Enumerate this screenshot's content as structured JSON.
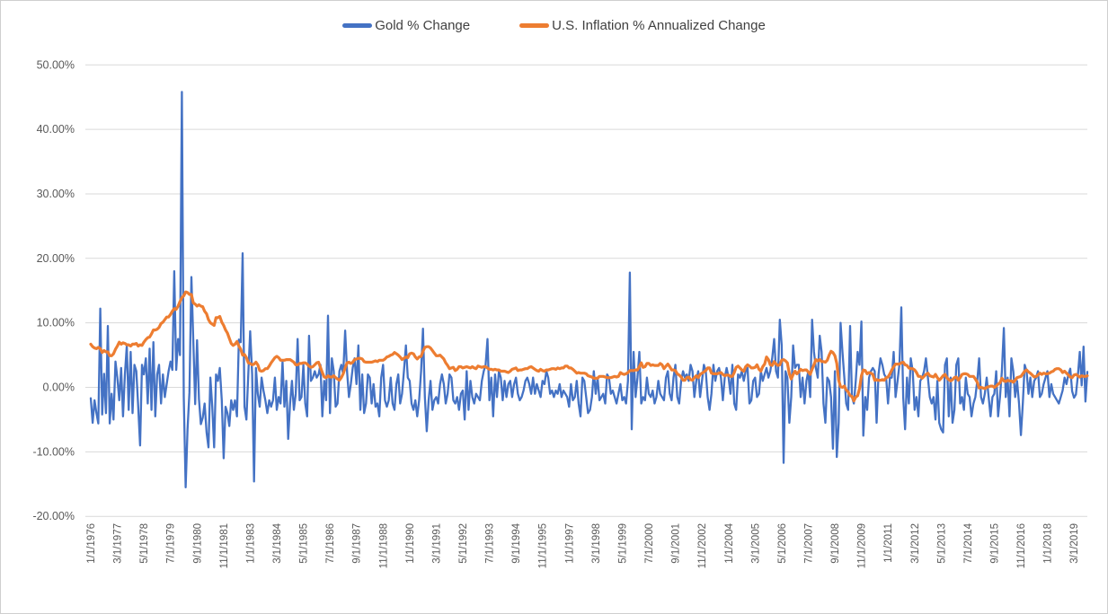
{
  "legend": {
    "items": [
      {
        "label": "Gold % Change",
        "color": "#4472C4"
      },
      {
        "label": "U.S. Inflation % Annualized Change",
        "color": "#ED7D31"
      }
    ]
  },
  "chart_data": {
    "type": "line",
    "title": "",
    "xlabel": "",
    "ylabel": "",
    "grid": "horizontal",
    "legend_position": "top-center",
    "x_unit": "monthly",
    "x_tick_every_n_points": 14,
    "x_tick_labels": [
      "1/1/1976",
      "3/1/1977",
      "5/1/1978",
      "7/1/1979",
      "9/1/1980",
      "11/1/1981",
      "1/1/1983",
      "3/1/1984",
      "5/1/1985",
      "7/1/1986",
      "9/1/1987",
      "11/1/1988",
      "1/1/1990",
      "3/1/1991",
      "5/1/1992",
      "7/1/1993",
      "9/1/1994",
      "11/1/1995",
      "1/1/1997",
      "3/1/1998",
      "5/1/1999",
      "7/1/2000",
      "9/1/2001",
      "11/1/2002",
      "1/1/2004",
      "3/1/2005",
      "5/1/2006",
      "7/1/2007",
      "9/1/2008",
      "11/1/2009",
      "1/1/2011",
      "3/1/2012",
      "5/1/2013",
      "7/1/2014",
      "9/1/2015",
      "11/1/2016",
      "1/1/2018",
      "3/1/2019"
    ],
    "y_axis": {
      "min": -20,
      "max": 50,
      "step": 10
    },
    "y_tick_labels": [
      "50.00%",
      "40.00%",
      "30.00%",
      "20.00%",
      "10.00%",
      "0.00%",
      "-10.00%",
      "-20.00%"
    ],
    "y_tick_values": [
      50,
      40,
      30,
      20,
      10,
      0,
      -10,
      -20
    ],
    "series": [
      {
        "name": "Gold % Change",
        "color": "#4472C4",
        "stroke_width": 2.3,
        "values": [
          -1.7,
          -5.5,
          -2.0,
          -4.0,
          -5.6,
          12.2,
          -4.2,
          2.1,
          -4.0,
          9.5,
          -5.6,
          -1.0,
          -5.0,
          4.0,
          1.5,
          -2.0,
          3.0,
          -4.5,
          2.0,
          6.5,
          -3.5,
          5.5,
          -4.0,
          3.5,
          2.5,
          -3.0,
          -9.0,
          3.5,
          2.0,
          4.5,
          -2.5,
          6.0,
          -3.5,
          7.0,
          -4.5,
          2.0,
          3.5,
          -2.5,
          2.0,
          -1.5,
          0.5,
          2.5,
          4.0,
          2.7,
          18.0,
          2.7,
          7.5,
          5.0,
          45.8,
          -1.5,
          -15.5,
          -6.5,
          -0.8,
          17.1,
          7.3,
          -2.6,
          7.3,
          -1.8,
          -5.7,
          -4.7,
          -2.5,
          -7.0,
          -9.3,
          1.5,
          -3.0,
          -9.3,
          2.0,
          1.0,
          3.0,
          -2.0,
          -11.0,
          -3.0,
          -4.0,
          -6.0,
          -2.0,
          -3.5,
          -2.0,
          -4.5,
          7.4,
          7.0,
          20.8,
          -3.0,
          -5.0,
          2.0,
          8.7,
          2.0,
          -14.6,
          3.0,
          -1.0,
          -3.0,
          1.5,
          -0.5,
          -2.0,
          -4.0,
          -2.0,
          -3.0,
          -2.0,
          1.5,
          -3.5,
          -1.5,
          -2.5,
          4.0,
          -3.0,
          1.0,
          -8.0,
          -2.5,
          1.0,
          -3.5,
          -1.0,
          7.5,
          -2.0,
          -1.5,
          3.5,
          -2.5,
          -4.5,
          8.0,
          1.0,
          1.5,
          2.5,
          1.5,
          2.0,
          3.5,
          -4.5,
          1.0,
          -2.0,
          11.1,
          -4.0,
          4.5,
          2.5,
          -3.0,
          -2.5,
          2.5,
          3.5,
          2.0,
          8.8,
          2.5,
          -1.5,
          0.5,
          3.0,
          4.5,
          0.5,
          6.5,
          -3.5,
          2.0,
          -4.0,
          -2.5,
          2.0,
          1.5,
          -2.5,
          0.5,
          -3.0,
          -2.5,
          -4.5,
          1.5,
          3.5,
          -2.0,
          -3.0,
          -2.0,
          1.5,
          -2.5,
          -3.5,
          0.5,
          2.0,
          -2.5,
          -1.0,
          2.5,
          6.5,
          1.5,
          1.0,
          -2.5,
          -3.5,
          -2.0,
          -4.5,
          -2.0,
          2.5,
          9.1,
          -1.5,
          -6.8,
          -2.0,
          1.0,
          -3.5,
          -2.0,
          -1.5,
          -2.5,
          0.5,
          2.0,
          0.5,
          -2.5,
          -1.0,
          2.0,
          1.5,
          -2.0,
          -2.5,
          -1.5,
          -3.5,
          -1.0,
          -0.5,
          -5.0,
          2.5,
          -3.5,
          1.0,
          -1.5,
          -2.5,
          -1.0,
          -1.5,
          -2.0,
          1.0,
          2.5,
          3.5,
          7.5,
          -2.0,
          1.5,
          -4.5,
          2.0,
          -1.5,
          2.5,
          1.5,
          -2.0,
          1.0,
          -1.5,
          0.5,
          1.0,
          -1.5,
          0.5,
          1.5,
          -1.0,
          -2.0,
          -1.5,
          -0.5,
          1.0,
          1.5,
          0.5,
          -1.0,
          1.5,
          -1.0,
          0.5,
          -0.5,
          -1.5,
          1.0,
          0.5,
          2.5,
          1.5,
          -1.0,
          -0.5,
          -1.5,
          -0.5,
          -1.0,
          0.5,
          -1.5,
          -0.5,
          -1.0,
          -1.5,
          -3.0,
          0.5,
          -2.0,
          -1.5,
          1.0,
          -2.5,
          -4.5,
          1.5,
          1.0,
          -1.5,
          -4.0,
          -3.5,
          -1.5,
          2.5,
          -1.0,
          1.5,
          -2.0,
          -1.5,
          -1.0,
          -2.5,
          2.0,
          1.5,
          -1.0,
          -0.5,
          -1.5,
          -2.5,
          -1.0,
          0.5,
          -2.0,
          -1.5,
          -2.5,
          1.0,
          17.8,
          -6.5,
          5.5,
          -1.5,
          1.5,
          5.5,
          -2.5,
          -1.5,
          -2.0,
          1.5,
          -1.0,
          -1.5,
          -0.5,
          -2.5,
          -1.5,
          1.0,
          -1.0,
          -1.5,
          -2.0,
          1.5,
          2.5,
          -1.0,
          -2.0,
          1.5,
          3.5,
          -1.5,
          -2.5,
          1.0,
          2.5,
          1.5,
          2.0,
          1.0,
          3.5,
          2.5,
          -1.5,
          1.0,
          2.5,
          -1.5,
          1.0,
          3.5,
          2.5,
          -1.5,
          -3.5,
          -1.0,
          3.5,
          1.0,
          2.5,
          3.0,
          1.5,
          -2.0,
          1.5,
          3.0,
          1.5,
          -1.0,
          3.5,
          -2.5,
          -3.5,
          2.0,
          1.5,
          2.5,
          1.0,
          2.5,
          3.0,
          -2.5,
          -2.0,
          1.0,
          1.5,
          -1.5,
          -1.0,
          2.5,
          1.0,
          2.0,
          3.0,
          1.5,
          2.5,
          4.5,
          7.5,
          2.5,
          1.5,
          10.5,
          6.5,
          -11.7,
          2.5,
          1.5,
          -5.5,
          -1.5,
          6.5,
          3.0,
          3.5,
          3.5,
          -1.5,
          1.5,
          -2.5,
          1.0,
          2.5,
          -1.5,
          10.5,
          5.5,
          3.0,
          1.5,
          8.0,
          5.5,
          -2.5,
          -5.5,
          1.5,
          1.0,
          -1.5,
          -9.5,
          2.5,
          -10.8,
          -5.5,
          10.0,
          5.5,
          1.5,
          -2.5,
          -3.5,
          9.5,
          -1.5,
          -2.5,
          1.0,
          5.5,
          3.5,
          10.2,
          -7.5,
          -1.5,
          -3.5,
          1.5,
          2.5,
          3.0,
          2.5,
          -5.5,
          2.0,
          4.5,
          3.5,
          2.0,
          1.5,
          -2.5,
          1.5,
          1.5,
          5.5,
          -1.5,
          1.0,
          3.5,
          12.4,
          -1.5,
          -6.5,
          1.5,
          -2.5,
          4.5,
          2.5,
          -3.5,
          -1.5,
          -4.5,
          1.0,
          1.5,
          2.5,
          4.5,
          1.5,
          -1.5,
          -2.5,
          -1.5,
          -5.0,
          1.0,
          -5.5,
          -6.5,
          -7.0,
          3.5,
          4.5,
          -4.5,
          1.5,
          -5.5,
          -3.5,
          3.5,
          4.5,
          -2.5,
          -1.5,
          -3.5,
          1.5,
          -1.0,
          -1.5,
          -4.5,
          -2.5,
          -1.5,
          1.0,
          4.5,
          -1.5,
          -2.5,
          -1.0,
          1.5,
          -1.5,
          -4.5,
          -1.5,
          -1.0,
          2.5,
          -4.5,
          -1.5,
          2.5,
          9.2,
          -1.5,
          1.5,
          -4.5,
          4.5,
          2.5,
          -1.5,
          1.0,
          -2.5,
          -7.4,
          -2.5,
          3.5,
          2.5,
          -1.0,
          1.5,
          -1.5,
          1.0,
          1.5,
          2.5,
          -1.5,
          -1.0,
          0.5,
          1.5,
          2.5,
          -1.5,
          0.5,
          -1.0,
          -1.5,
          -2.0,
          -2.5,
          -1.5,
          -0.5,
          1.5,
          0.5,
          2.0,
          2.9,
          -0.6,
          -1.6,
          -1.1,
          1.7,
          5.5,
          0.3,
          6.3,
          -2.2,
          2.4
        ]
      },
      {
        "name": "U.S. Inflation % Annualized Change",
        "color": "#ED7D31",
        "stroke_width": 3.2,
        "values": [
          6.7,
          6.3,
          6.1,
          6.0,
          6.2,
          6.0,
          5.4,
          5.7,
          5.5,
          5.5,
          4.9,
          4.9,
          5.2,
          5.9,
          6.4,
          7.0,
          6.7,
          6.9,
          6.8,
          6.6,
          6.6,
          6.4,
          6.7,
          6.7,
          6.8,
          6.4,
          6.6,
          6.5,
          7.0,
          7.4,
          7.7,
          7.8,
          8.3,
          8.9,
          8.9,
          9.0,
          9.3,
          9.9,
          10.1,
          10.5,
          10.9,
          10.9,
          11.3,
          11.8,
          12.2,
          12.1,
          12.6,
          13.3,
          13.9,
          14.2,
          14.8,
          14.7,
          14.4,
          14.4,
          13.1,
          12.9,
          12.6,
          12.8,
          12.6,
          12.5,
          11.8,
          11.4,
          10.5,
          10.0,
          9.8,
          9.6,
          10.8,
          10.8,
          11.0,
          10.1,
          9.6,
          8.9,
          8.4,
          7.6,
          6.8,
          6.5,
          6.7,
          7.1,
          6.4,
          5.9,
          5.0,
          5.1,
          4.6,
          3.8,
          3.7,
          3.5,
          3.6,
          3.9,
          3.5,
          2.6,
          2.5,
          2.6,
          2.9,
          2.9,
          3.3,
          3.8,
          4.2,
          4.6,
          4.8,
          4.6,
          4.2,
          4.2,
          4.2,
          4.3,
          4.3,
          4.3,
          4.1,
          3.9,
          3.5,
          3.5,
          3.7,
          3.7,
          3.8,
          3.8,
          3.6,
          3.3,
          3.1,
          3.2,
          3.5,
          3.8,
          3.9,
          3.1,
          2.3,
          1.6,
          1.5,
          1.8,
          1.6,
          1.6,
          1.8,
          1.5,
          1.3,
          1.1,
          1.5,
          2.1,
          3.0,
          3.8,
          3.9,
          3.7,
          3.9,
          4.3,
          4.4,
          4.5,
          4.5,
          4.4,
          4.0,
          3.9,
          3.9,
          3.9,
          3.9,
          4.0,
          4.1,
          4.0,
          4.2,
          4.2,
          4.2,
          4.4,
          4.7,
          4.8,
          5.0,
          5.1,
          5.4,
          5.2,
          5.0,
          4.7,
          4.3,
          4.5,
          4.7,
          4.6,
          5.2,
          5.3,
          5.2,
          4.7,
          4.4,
          4.7,
          4.8,
          5.6,
          6.2,
          6.3,
          6.3,
          6.1,
          5.7,
          5.3,
          4.9,
          4.9,
          5.0,
          4.7,
          4.4,
          3.8,
          3.4,
          2.9,
          3.0,
          3.1,
          2.6,
          2.8,
          3.2,
          3.2,
          3.0,
          3.1,
          3.2,
          3.1,
          3.0,
          3.2,
          3.0,
          2.9,
          3.3,
          3.2,
          3.1,
          3.2,
          3.2,
          3.0,
          2.8,
          2.8,
          2.7,
          2.8,
          2.7,
          2.7,
          2.5,
          2.5,
          2.5,
          2.4,
          2.3,
          2.5,
          2.8,
          2.9,
          3.0,
          2.6,
          2.7,
          2.7,
          2.8,
          2.9,
          2.9,
          3.1,
          3.2,
          3.0,
          2.8,
          2.6,
          2.5,
          2.8,
          2.6,
          2.5,
          2.7,
          2.7,
          2.8,
          2.9,
          2.9,
          2.8,
          3.0,
          2.9,
          3.0,
          3.0,
          3.3,
          3.3,
          3.0,
          3.0,
          2.8,
          2.5,
          2.2,
          2.3,
          2.2,
          2.2,
          2.2,
          2.1,
          1.8,
          1.7,
          1.6,
          1.4,
          1.4,
          1.4,
          1.7,
          1.7,
          1.7,
          1.6,
          1.5,
          1.5,
          1.5,
          1.6,
          1.7,
          1.6,
          1.7,
          2.3,
          2.1,
          2.0,
          2.1,
          2.3,
          2.6,
          2.6,
          2.6,
          2.7,
          2.7,
          3.2,
          3.8,
          3.1,
          3.2,
          3.7,
          3.7,
          3.4,
          3.5,
          3.4,
          3.4,
          3.4,
          3.7,
          3.5,
          2.9,
          3.3,
          3.6,
          3.2,
          2.7,
          2.7,
          2.6,
          2.1,
          1.9,
          1.6,
          1.1,
          1.1,
          1.5,
          1.6,
          1.2,
          1.1,
          1.5,
          1.8,
          1.5,
          2.0,
          2.2,
          2.4,
          2.6,
          3.0,
          3.0,
          2.2,
          2.1,
          2.1,
          2.1,
          2.2,
          2.3,
          2.0,
          1.8,
          1.9,
          1.9,
          1.7,
          1.7,
          2.3,
          3.1,
          3.3,
          3.0,
          2.7,
          2.5,
          3.2,
          3.5,
          3.3,
          3.0,
          3.0,
          3.1,
          3.5,
          2.8,
          2.5,
          3.2,
          3.6,
          4.7,
          4.3,
          3.5,
          3.4,
          4.0,
          3.6,
          3.4,
          3.5,
          4.2,
          4.3,
          4.1,
          3.8,
          2.1,
          1.3,
          2.0,
          2.5,
          2.1,
          2.4,
          2.8,
          2.6,
          2.7,
          2.7,
          2.4,
          2.0,
          2.8,
          3.5,
          4.3,
          4.1,
          4.3,
          4.0,
          4.0,
          3.9,
          4.2,
          5.0,
          5.6,
          5.4,
          4.9,
          3.7,
          1.1,
          0.1,
          0.0,
          0.2,
          -0.4,
          -0.7,
          -1.3,
          -1.4,
          -2.1,
          -1.5,
          -1.3,
          -0.2,
          1.8,
          2.7,
          2.6,
          2.1,
          2.3,
          2.2,
          2.0,
          1.1,
          1.2,
          1.1,
          1.1,
          1.2,
          1.1,
          1.5,
          1.6,
          2.1,
          2.7,
          3.2,
          3.6,
          3.6,
          3.6,
          3.8,
          3.9,
          3.5,
          3.4,
          3.0,
          2.9,
          2.9,
          2.7,
          2.3,
          1.7,
          1.7,
          1.4,
          1.7,
          2.0,
          2.2,
          1.8,
          1.7,
          1.6,
          2.0,
          1.5,
          1.1,
          1.4,
          1.8,
          2.0,
          1.5,
          1.2,
          1.0,
          1.2,
          1.5,
          1.6,
          1.1,
          1.5,
          2.0,
          2.1,
          2.1,
          2.0,
          1.7,
          1.7,
          1.7,
          1.3,
          0.8,
          -0.1,
          0.0,
          -0.1,
          -0.2,
          0.0,
          0.1,
          0.2,
          0.2,
          0.0,
          0.2,
          0.5,
          0.7,
          1.4,
          1.0,
          0.9,
          1.1,
          1.0,
          1.0,
          0.8,
          1.1,
          1.5,
          1.6,
          1.7,
          2.1,
          2.5,
          2.7,
          2.4,
          2.2,
          1.9,
          1.6,
          1.7,
          1.9,
          2.2,
          2.0,
          2.2,
          2.1,
          2.1,
          2.2,
          2.4,
          2.5,
          2.8,
          2.9,
          2.9,
          2.7,
          2.3,
          2.5,
          2.2,
          1.9,
          1.6,
          1.5,
          1.9,
          2.0,
          1.8,
          1.6,
          1.8,
          1.7,
          1.7,
          1.8
        ]
      }
    ]
  },
  "colors": {
    "gold_line": "#4472C4",
    "inflation_line": "#ED7D31",
    "gridline": "#D9D9D9",
    "axis_label": "#595959",
    "legend_text": "#404040",
    "frame_border": "#CFCFCF",
    "background": "#FFFFFF"
  }
}
